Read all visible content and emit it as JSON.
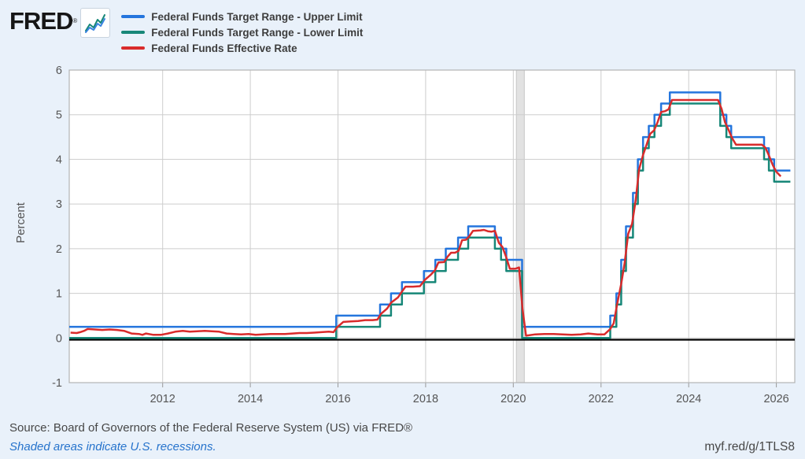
{
  "header": {
    "logo_text": "FRED",
    "registered_mark": "®"
  },
  "footer": {
    "source": "Source: Board of Governors of the Federal Reserve System (US) via FRED®",
    "recession_note": "Shaded areas indicate U.S. recessions.",
    "short_url": "myf.red/g/1TLS8"
  },
  "colors": {
    "background": "#e9f1fa",
    "plot_background": "#ffffff",
    "grid": "#cdcdcd",
    "plot_border": "#b3b3b3",
    "recession_band_fill": "#e2e2e2",
    "recession_band_edge": "#c6c6c6",
    "zero_line": "#000000",
    "tick_text": "#555555",
    "upper_limit": "#2475dd",
    "lower_limit": "#178778",
    "effective_rate": "#d92b2b"
  },
  "chart_data": {
    "type": "line",
    "title": "",
    "xlabel": "",
    "ylabel": "Percent",
    "ylim": [
      -1,
      6
    ],
    "xlim": [
      2009.87,
      2026.42
    ],
    "yticks": [
      6,
      5,
      4,
      3,
      2,
      1,
      0,
      -1
    ],
    "xticks": [
      2012,
      2014,
      2016,
      2018,
      2020,
      2022,
      2024,
      2026
    ],
    "grid": true,
    "legend_position": "top",
    "recession_bands": [
      [
        2020.07,
        2020.25
      ]
    ],
    "zero_line_value": 0,
    "series": [
      {
        "name": "Federal Funds Target Range - Upper Limit",
        "color": "#2475dd",
        "style": "step",
        "points": [
          [
            2009.87,
            0.25
          ],
          [
            2015.96,
            0.5
          ],
          [
            2016.96,
            0.75
          ],
          [
            2017.21,
            1.0
          ],
          [
            2017.46,
            1.25
          ],
          [
            2017.96,
            1.5
          ],
          [
            2018.22,
            1.75
          ],
          [
            2018.46,
            2.0
          ],
          [
            2018.74,
            2.25
          ],
          [
            2018.97,
            2.5
          ],
          [
            2019.58,
            2.25
          ],
          [
            2019.72,
            2.0
          ],
          [
            2019.84,
            1.75
          ],
          [
            2020.2,
            0.25
          ],
          [
            2022.21,
            0.5
          ],
          [
            2022.35,
            1.0
          ],
          [
            2022.46,
            1.75
          ],
          [
            2022.57,
            2.5
          ],
          [
            2022.73,
            3.25
          ],
          [
            2022.84,
            4.0
          ],
          [
            2022.96,
            4.5
          ],
          [
            2023.09,
            4.75
          ],
          [
            2023.22,
            5.0
          ],
          [
            2023.37,
            5.25
          ],
          [
            2023.57,
            5.5
          ],
          [
            2024.72,
            5.0
          ],
          [
            2024.86,
            4.75
          ],
          [
            2024.97,
            4.5
          ],
          [
            2025.72,
            4.25
          ],
          [
            2025.83,
            4.0
          ],
          [
            2025.95,
            3.75
          ],
          [
            2026.32,
            3.75
          ]
        ]
      },
      {
        "name": "Federal Funds Target Range - Lower Limit",
        "color": "#178778",
        "style": "step",
        "points": [
          [
            2009.87,
            0.0
          ],
          [
            2015.96,
            0.25
          ],
          [
            2016.96,
            0.5
          ],
          [
            2017.21,
            0.75
          ],
          [
            2017.46,
            1.0
          ],
          [
            2017.96,
            1.25
          ],
          [
            2018.22,
            1.5
          ],
          [
            2018.46,
            1.75
          ],
          [
            2018.74,
            2.0
          ],
          [
            2018.97,
            2.25
          ],
          [
            2019.58,
            2.0
          ],
          [
            2019.72,
            1.75
          ],
          [
            2019.84,
            1.5
          ],
          [
            2020.2,
            0.0
          ],
          [
            2022.21,
            0.25
          ],
          [
            2022.35,
            0.75
          ],
          [
            2022.46,
            1.5
          ],
          [
            2022.57,
            2.25
          ],
          [
            2022.73,
            3.0
          ],
          [
            2022.84,
            3.75
          ],
          [
            2022.96,
            4.25
          ],
          [
            2023.09,
            4.5
          ],
          [
            2023.22,
            4.75
          ],
          [
            2023.37,
            5.0
          ],
          [
            2023.57,
            5.25
          ],
          [
            2024.72,
            4.75
          ],
          [
            2024.86,
            4.5
          ],
          [
            2024.97,
            4.25
          ],
          [
            2025.72,
            4.0
          ],
          [
            2025.83,
            3.75
          ],
          [
            2025.95,
            3.5
          ],
          [
            2026.32,
            3.5
          ]
        ]
      },
      {
        "name": "Federal Funds Effective Rate",
        "color": "#d92b2b",
        "style": "line",
        "points": [
          [
            2009.9,
            0.12
          ],
          [
            2010.04,
            0.11
          ],
          [
            2010.12,
            0.13
          ],
          [
            2010.21,
            0.16
          ],
          [
            2010.29,
            0.2
          ],
          [
            2010.46,
            0.19
          ],
          [
            2010.62,
            0.18
          ],
          [
            2010.79,
            0.19
          ],
          [
            2010.96,
            0.18
          ],
          [
            2011.12,
            0.16
          ],
          [
            2011.29,
            0.1
          ],
          [
            2011.46,
            0.09
          ],
          [
            2011.54,
            0.07
          ],
          [
            2011.62,
            0.1
          ],
          [
            2011.79,
            0.07
          ],
          [
            2011.96,
            0.07
          ],
          [
            2012.12,
            0.1
          ],
          [
            2012.29,
            0.14
          ],
          [
            2012.46,
            0.16
          ],
          [
            2012.62,
            0.14
          ],
          [
            2012.79,
            0.15
          ],
          [
            2012.96,
            0.16
          ],
          [
            2013.12,
            0.15
          ],
          [
            2013.29,
            0.14
          ],
          [
            2013.46,
            0.1
          ],
          [
            2013.62,
            0.09
          ],
          [
            2013.79,
            0.08
          ],
          [
            2013.96,
            0.09
          ],
          [
            2014.12,
            0.07
          ],
          [
            2014.29,
            0.08
          ],
          [
            2014.46,
            0.09
          ],
          [
            2014.62,
            0.09
          ],
          [
            2014.79,
            0.09
          ],
          [
            2014.96,
            0.1
          ],
          [
            2015.12,
            0.11
          ],
          [
            2015.29,
            0.11
          ],
          [
            2015.46,
            0.12
          ],
          [
            2015.62,
            0.13
          ],
          [
            2015.79,
            0.14
          ],
          [
            2015.9,
            0.13
          ],
          [
            2015.98,
            0.24
          ],
          [
            2016.12,
            0.36
          ],
          [
            2016.29,
            0.37
          ],
          [
            2016.46,
            0.38
          ],
          [
            2016.62,
            0.4
          ],
          [
            2016.79,
            0.4
          ],
          [
            2016.9,
            0.41
          ],
          [
            2016.98,
            0.54
          ],
          [
            2017.12,
            0.66
          ],
          [
            2017.21,
            0.79
          ],
          [
            2017.37,
            0.91
          ],
          [
            2017.46,
            1.04
          ],
          [
            2017.54,
            1.15
          ],
          [
            2017.71,
            1.15
          ],
          [
            2017.87,
            1.16
          ],
          [
            2017.98,
            1.3
          ],
          [
            2018.12,
            1.42
          ],
          [
            2018.21,
            1.51
          ],
          [
            2018.29,
            1.69
          ],
          [
            2018.42,
            1.7
          ],
          [
            2018.5,
            1.82
          ],
          [
            2018.58,
            1.91
          ],
          [
            2018.67,
            1.91
          ],
          [
            2018.75,
            1.95
          ],
          [
            2018.83,
            2.19
          ],
          [
            2018.92,
            2.2
          ],
          [
            2018.99,
            2.27
          ],
          [
            2019.08,
            2.4
          ],
          [
            2019.25,
            2.41
          ],
          [
            2019.33,
            2.42
          ],
          [
            2019.42,
            2.39
          ],
          [
            2019.5,
            2.38
          ],
          [
            2019.58,
            2.4
          ],
          [
            2019.67,
            2.13
          ],
          [
            2019.75,
            2.04
          ],
          [
            2019.83,
            1.83
          ],
          [
            2019.92,
            1.55
          ],
          [
            2020.04,
            1.55
          ],
          [
            2020.13,
            1.58
          ],
          [
            2020.21,
            0.65
          ],
          [
            2020.29,
            0.05
          ],
          [
            2020.5,
            0.08
          ],
          [
            2020.71,
            0.09
          ],
          [
            2020.92,
            0.09
          ],
          [
            2021.12,
            0.08
          ],
          [
            2021.33,
            0.07
          ],
          [
            2021.54,
            0.08
          ],
          [
            2021.71,
            0.1
          ],
          [
            2021.92,
            0.08
          ],
          [
            2022.08,
            0.08
          ],
          [
            2022.21,
            0.2
          ],
          [
            2022.29,
            0.33
          ],
          [
            2022.37,
            0.77
          ],
          [
            2022.46,
            1.21
          ],
          [
            2022.54,
            1.68
          ],
          [
            2022.62,
            2.33
          ],
          [
            2022.71,
            2.56
          ],
          [
            2022.79,
            3.08
          ],
          [
            2022.87,
            3.78
          ],
          [
            2022.96,
            4.1
          ],
          [
            2023.04,
            4.33
          ],
          [
            2023.12,
            4.57
          ],
          [
            2023.21,
            4.65
          ],
          [
            2023.29,
            4.83
          ],
          [
            2023.37,
            5.06
          ],
          [
            2023.46,
            5.08
          ],
          [
            2023.54,
            5.12
          ],
          [
            2023.62,
            5.33
          ],
          [
            2023.83,
            5.33
          ],
          [
            2024.04,
            5.33
          ],
          [
            2024.29,
            5.33
          ],
          [
            2024.54,
            5.33
          ],
          [
            2024.67,
            5.33
          ],
          [
            2024.75,
            5.13
          ],
          [
            2024.83,
            4.83
          ],
          [
            2024.92,
            4.64
          ],
          [
            2024.99,
            4.48
          ],
          [
            2025.08,
            4.33
          ],
          [
            2025.29,
            4.33
          ],
          [
            2025.5,
            4.33
          ],
          [
            2025.67,
            4.33
          ],
          [
            2025.75,
            4.26
          ],
          [
            2025.83,
            4.09
          ],
          [
            2025.92,
            3.87
          ],
          [
            2026.0,
            3.72
          ],
          [
            2026.1,
            3.62
          ]
        ]
      }
    ]
  }
}
